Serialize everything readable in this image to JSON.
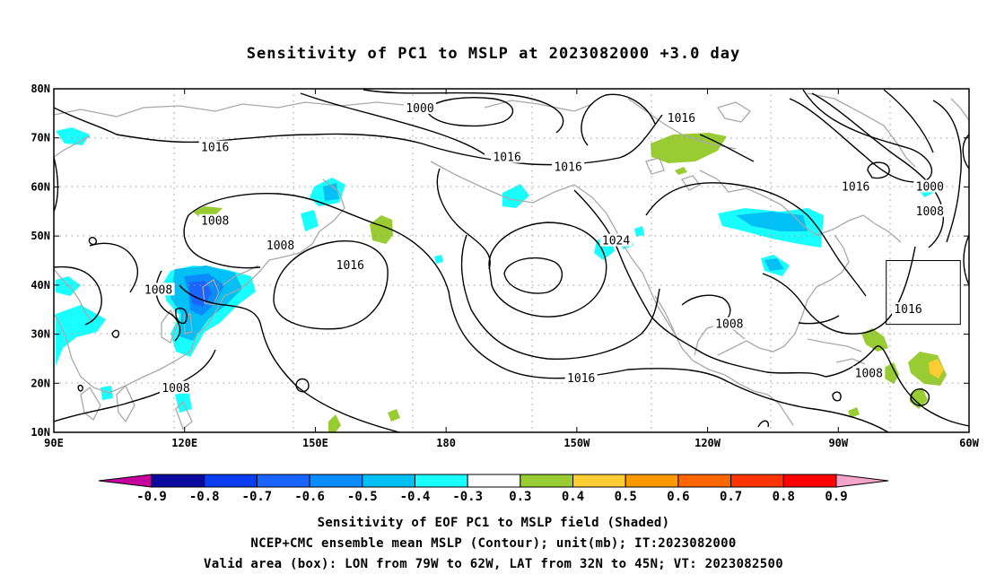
{
  "title": "Sensitivity of PC1 to MSLP at 2023082000 +3.0 day",
  "map": {
    "lon_ticks": [
      "90E",
      "120E",
      "150E",
      "180",
      "150W",
      "120W",
      "90W",
      "60W"
    ],
    "lat_ticks": [
      "10N",
      "20N",
      "30N",
      "40N",
      "50N",
      "60N",
      "70N",
      "80N"
    ],
    "lon_range_deg_east": [
      90,
      300
    ],
    "lat_range_deg": [
      10,
      80
    ],
    "contour_labels": [
      {
        "text": "1000",
        "lon": 174,
        "lat": 76
      },
      {
        "text": "1016",
        "lon": 234,
        "lat": 74
      },
      {
        "text": "1016",
        "lon": 127,
        "lat": 68
      },
      {
        "text": "1016",
        "lon": 194,
        "lat": 66
      },
      {
        "text": "1016",
        "lon": 208,
        "lat": 64
      },
      {
        "text": "1016",
        "lon": 274,
        "lat": 60
      },
      {
        "text": "1000",
        "lon": 291,
        "lat": 60
      },
      {
        "text": "1008",
        "lon": 291,
        "lat": 55
      },
      {
        "text": "1008",
        "lon": 127,
        "lat": 53
      },
      {
        "text": "1008",
        "lon": 142,
        "lat": 48
      },
      {
        "text": "1024",
        "lon": 219,
        "lat": 49
      },
      {
        "text": "1016",
        "lon": 158,
        "lat": 44
      },
      {
        "text": "1008",
        "lon": 114,
        "lat": 39
      },
      {
        "text": "1016",
        "lon": 286,
        "lat": 35
      },
      {
        "text": "1008",
        "lon": 245,
        "lat": 32
      },
      {
        "text": "1016",
        "lon": 211,
        "lat": 21
      },
      {
        "text": "1008",
        "lon": 277,
        "lat": 22
      },
      {
        "text": "1008",
        "lon": 118,
        "lat": 19
      }
    ],
    "valid_box": {
      "lon_west": -79,
      "lon_east": -62,
      "lat_south": 32,
      "lat_north": 45
    }
  },
  "colorbar": {
    "labels": [
      "-0.9",
      "-0.8",
      "-0.7",
      "-0.6",
      "-0.5",
      "-0.4",
      "-0.3",
      "0.3",
      "0.4",
      "0.5",
      "0.6",
      "0.7",
      "0.8",
      "0.9"
    ],
    "low_color": "#c8009e",
    "high_color": "#f5a3c8",
    "colors": [
      "#0a0a9e",
      "#0a3cf0",
      "#1a64ff",
      "#0a8cff",
      "#00c0f5",
      "#19ffff",
      "#ffffff",
      "#99cc33",
      "#ffcc33",
      "#ff9900",
      "#ff6600",
      "#ff3300",
      "#ff0000"
    ]
  },
  "captions": [
    "Sensitivity of EOF PC1 to MSLP field (Shaded)",
    "NCEP+CMC ensemble mean MSLP (Contour); unit(mb); IT:2023082000",
    "Valid area (box): LON from 79W to 62W, LAT from 32N to 45N; VT: 2023082500"
  ]
}
